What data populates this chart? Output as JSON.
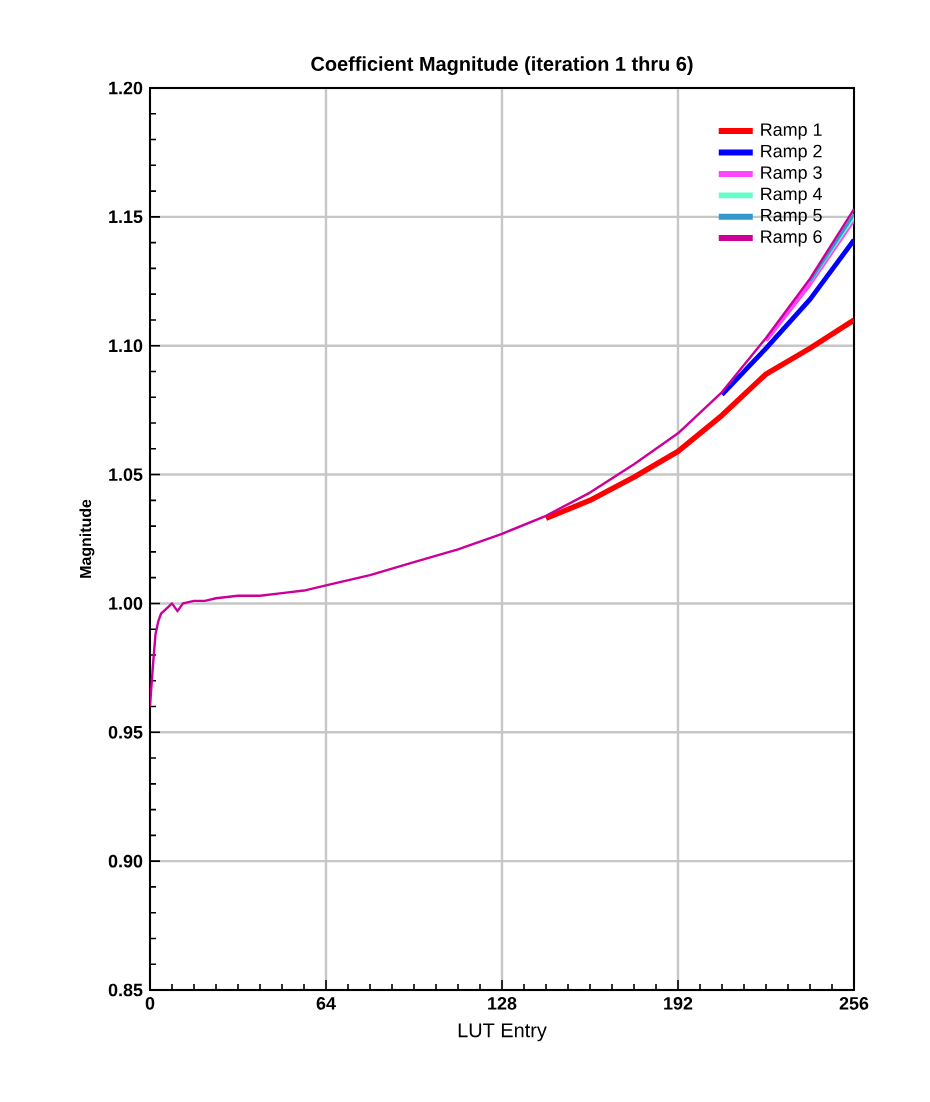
{
  "chart_data": {
    "type": "line",
    "title": "Coefficient Magnitude (iteration 1 thru 6)",
    "xlabel": "LUT Entry",
    "ylabel": "Magnitude",
    "x": [
      0,
      1,
      2,
      3,
      4,
      6,
      8,
      10,
      12,
      16,
      20,
      24,
      32,
      40,
      48,
      56,
      64,
      80,
      96,
      112,
      128,
      144,
      160,
      176,
      192,
      208,
      224,
      240,
      256
    ],
    "xlim": [
      0,
      256
    ],
    "xticks": [
      0,
      64,
      128,
      192,
      256
    ],
    "ylim": [
      0.85,
      1.2
    ],
    "yticks": [
      {
        "value": 0.85,
        "label": "0.85"
      },
      {
        "value": 0.9,
        "label": "0.90"
      },
      {
        "value": 0.95,
        "label": "0.95"
      },
      {
        "value": 1.0,
        "label": "1.00"
      },
      {
        "value": 1.05,
        "label": "1.05"
      },
      {
        "value": 1.1,
        "label": "1.10"
      },
      {
        "value": 1.15,
        "label": "1.15"
      },
      {
        "value": 1.2,
        "label": "1.20"
      }
    ],
    "grid": true,
    "legend": "top right",
    "marker": "none",
    "line_style": "solid",
    "series": [
      {
        "name": "Ramp 1",
        "color": "#ff0000",
        "values": [
          null,
          null,
          null,
          null,
          null,
          null,
          null,
          null,
          null,
          null,
          null,
          null,
          null,
          null,
          null,
          null,
          null,
          null,
          null,
          null,
          null,
          1.033,
          1.04,
          1.049,
          1.059,
          1.073,
          1.089,
          1.099,
          1.11
        ]
      },
      {
        "name": "Ramp 2",
        "color": "#0000ff",
        "values": [
          null,
          null,
          null,
          null,
          null,
          null,
          null,
          null,
          null,
          null,
          null,
          null,
          null,
          null,
          null,
          null,
          null,
          null,
          null,
          null,
          null,
          null,
          null,
          null,
          null,
          1.081,
          1.099,
          1.118,
          1.141
        ]
      },
      {
        "name": "Ramp 3",
        "color": "#ff44ff",
        "values": [
          null,
          null,
          null,
          null,
          null,
          null,
          null,
          null,
          null,
          null,
          null,
          null,
          null,
          null,
          null,
          null,
          null,
          null,
          null,
          null,
          null,
          null,
          null,
          null,
          null,
          null,
          1.102,
          1.124,
          1.149
        ]
      },
      {
        "name": "Ramp 4",
        "color": "#66ffcc",
        "values": [
          null,
          null,
          null,
          null,
          null,
          null,
          null,
          null,
          null,
          null,
          null,
          null,
          null,
          null,
          null,
          null,
          null,
          null,
          null,
          null,
          null,
          null,
          null,
          null,
          null,
          null,
          null,
          1.125,
          1.15
        ]
      },
      {
        "name": "Ramp 5",
        "color": "#3399cc",
        "values": [
          null,
          null,
          null,
          null,
          null,
          null,
          null,
          null,
          null,
          null,
          null,
          null,
          null,
          null,
          null,
          null,
          null,
          null,
          null,
          null,
          null,
          null,
          null,
          null,
          null,
          null,
          null,
          1.125,
          1.151
        ]
      },
      {
        "name": "Ramp 6",
        "color": "#cc0099",
        "values": [
          0.96,
          0.975,
          0.988,
          0.993,
          0.996,
          0.998,
          1.0,
          0.997,
          1.0,
          1.001,
          1.001,
          1.002,
          1.003,
          1.003,
          1.004,
          1.005,
          1.007,
          1.011,
          1.016,
          1.021,
          1.027,
          1.034,
          1.043,
          1.054,
          1.066,
          1.082,
          1.103,
          1.126,
          1.153
        ]
      }
    ]
  }
}
